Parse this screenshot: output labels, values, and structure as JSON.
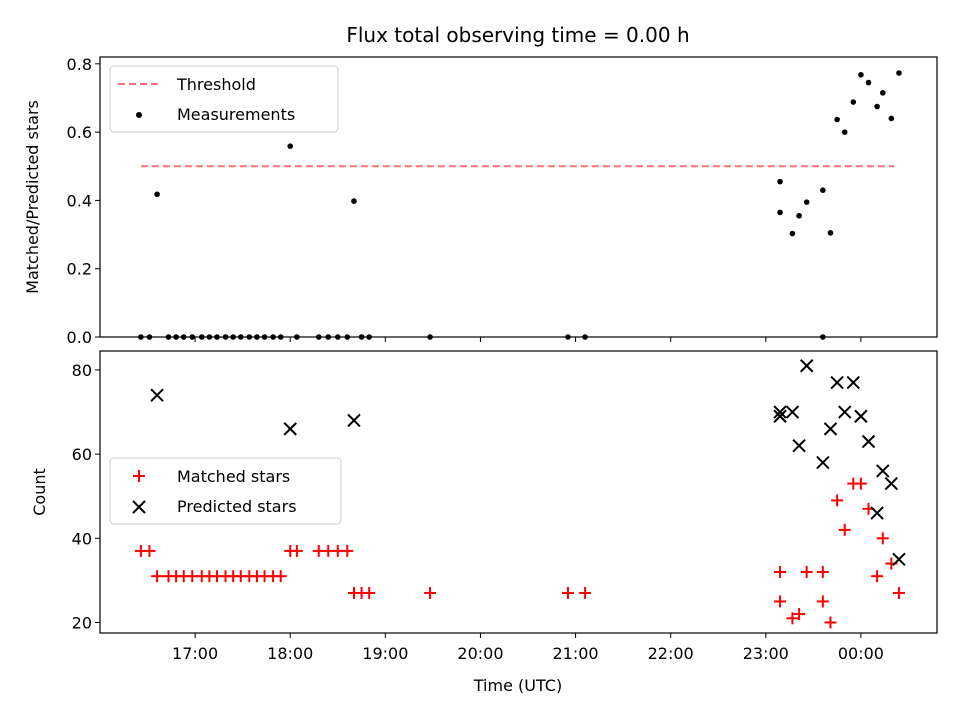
{
  "chart_data": [
    {
      "type": "scatter",
      "panel": "top",
      "title": "Flux total observing time = 0.00 h",
      "ylabel": "Matched/Predicted stars",
      "xlabel": "",
      "xlim_hours": [
        16.0,
        24.8
      ],
      "ylim": [
        0.0,
        0.82
      ],
      "y_ticks": [
        0.0,
        0.2,
        0.4,
        0.6,
        0.8
      ],
      "y_tick_labels": [
        "0.0",
        "0.2",
        "0.4",
        "0.6",
        "0.8"
      ],
      "legend": {
        "position": "upper left",
        "entries": [
          "Threshold",
          "Measurements"
        ]
      },
      "threshold": {
        "name": "Threshold",
        "value": 0.5,
        "x_start": 16.43,
        "x_end": 24.35,
        "color": "#ff7070",
        "style": "dashed"
      },
      "series": [
        {
          "name": "Measurements",
          "color": "#000000",
          "marker": "dot",
          "points": [
            [
              16.43,
              0.0
            ],
            [
              16.52,
              0.0
            ],
            [
              16.6,
              0.418
            ],
            [
              16.72,
              0.0
            ],
            [
              16.8,
              0.0
            ],
            [
              16.88,
              0.0
            ],
            [
              16.97,
              0.0
            ],
            [
              17.07,
              0.0
            ],
            [
              17.15,
              0.0
            ],
            [
              17.23,
              0.0
            ],
            [
              17.32,
              0.0
            ],
            [
              17.4,
              0.0
            ],
            [
              17.48,
              0.0
            ],
            [
              17.57,
              0.0
            ],
            [
              17.65,
              0.0
            ],
            [
              17.73,
              0.0
            ],
            [
              17.82,
              0.0
            ],
            [
              17.9,
              0.0
            ],
            [
              18.0,
              0.559
            ],
            [
              18.07,
              0.0
            ],
            [
              18.3,
              0.0
            ],
            [
              18.4,
              0.0
            ],
            [
              18.5,
              0.0
            ],
            [
              18.6,
              0.0
            ],
            [
              18.67,
              0.398
            ],
            [
              18.75,
              0.0
            ],
            [
              18.83,
              0.0
            ],
            [
              19.47,
              0.0
            ],
            [
              20.92,
              0.0
            ],
            [
              21.1,
              0.0
            ],
            [
              23.15,
              0.455
            ],
            [
              23.15,
              0.365
            ],
            [
              23.28,
              0.303
            ],
            [
              23.35,
              0.355
            ],
            [
              23.43,
              0.395
            ],
            [
              23.6,
              0.0
            ],
            [
              23.6,
              0.43
            ],
            [
              23.68,
              0.305
            ],
            [
              23.75,
              0.637
            ],
            [
              23.83,
              0.6
            ],
            [
              23.92,
              0.688
            ],
            [
              24.0,
              0.768
            ],
            [
              24.08,
              0.745
            ],
            [
              24.17,
              0.675
            ],
            [
              24.23,
              0.715
            ],
            [
              24.32,
              0.64
            ],
            [
              24.4,
              0.773
            ]
          ]
        }
      ]
    },
    {
      "type": "scatter",
      "panel": "bottom",
      "title": "",
      "xlabel": "Time (UTC)",
      "ylabel": "Count",
      "xlim_hours": [
        16.0,
        24.8
      ],
      "ylim": [
        17.5,
        84.5
      ],
      "x_ticks_hours": [
        17,
        18,
        19,
        20,
        21,
        22,
        23,
        24
      ],
      "x_tick_labels": [
        "17:00",
        "18:00",
        "19:00",
        "20:00",
        "21:00",
        "22:00",
        "23:00",
        "00:00"
      ],
      "y_ticks": [
        20,
        40,
        60,
        80
      ],
      "y_tick_labels": [
        "20",
        "40",
        "60",
        "80"
      ],
      "legend": {
        "position": "center left",
        "entries": [
          "Matched stars",
          "Predicted stars"
        ]
      },
      "series": [
        {
          "name": "Matched stars",
          "color": "#ff0000",
          "marker": "plus",
          "points": [
            [
              16.43,
              37
            ],
            [
              16.52,
              37
            ],
            [
              16.6,
              31
            ],
            [
              16.72,
              31
            ],
            [
              16.8,
              31
            ],
            [
              16.88,
              31
            ],
            [
              16.97,
              31
            ],
            [
              17.07,
              31
            ],
            [
              17.15,
              31
            ],
            [
              17.23,
              31
            ],
            [
              17.32,
              31
            ],
            [
              17.4,
              31
            ],
            [
              17.48,
              31
            ],
            [
              17.57,
              31
            ],
            [
              17.65,
              31
            ],
            [
              17.73,
              31
            ],
            [
              17.82,
              31
            ],
            [
              17.9,
              31
            ],
            [
              18.0,
              37
            ],
            [
              18.07,
              37
            ],
            [
              18.3,
              37
            ],
            [
              18.4,
              37
            ],
            [
              18.5,
              37
            ],
            [
              18.6,
              37
            ],
            [
              18.67,
              27
            ],
            [
              18.75,
              27
            ],
            [
              18.83,
              27
            ],
            [
              19.47,
              27
            ],
            [
              20.92,
              27
            ],
            [
              21.1,
              27
            ],
            [
              23.15,
              32
            ],
            [
              23.15,
              25
            ],
            [
              23.28,
              21
            ],
            [
              23.35,
              22
            ],
            [
              23.43,
              32
            ],
            [
              23.6,
              32
            ],
            [
              23.6,
              25
            ],
            [
              23.68,
              20
            ],
            [
              23.75,
              49
            ],
            [
              23.83,
              42
            ],
            [
              23.92,
              53
            ],
            [
              24.0,
              53
            ],
            [
              24.08,
              47
            ],
            [
              24.17,
              31
            ],
            [
              24.23,
              40
            ],
            [
              24.32,
              34
            ],
            [
              24.4,
              27
            ]
          ]
        },
        {
          "name": "Predicted stars",
          "color": "#000000",
          "marker": "x",
          "points": [
            [
              16.6,
              74
            ],
            [
              18.0,
              66
            ],
            [
              18.67,
              68
            ],
            [
              23.15,
              70
            ],
            [
              23.15,
              69
            ],
            [
              23.28,
              70
            ],
            [
              23.35,
              62
            ],
            [
              23.43,
              81
            ],
            [
              23.6,
              58
            ],
            [
              23.68,
              66
            ],
            [
              23.75,
              77
            ],
            [
              23.83,
              70
            ],
            [
              23.92,
              77
            ],
            [
              24.0,
              69
            ],
            [
              24.08,
              63
            ],
            [
              24.17,
              46
            ],
            [
              24.23,
              56
            ],
            [
              24.32,
              53
            ],
            [
              24.4,
              35
            ]
          ]
        }
      ]
    }
  ]
}
